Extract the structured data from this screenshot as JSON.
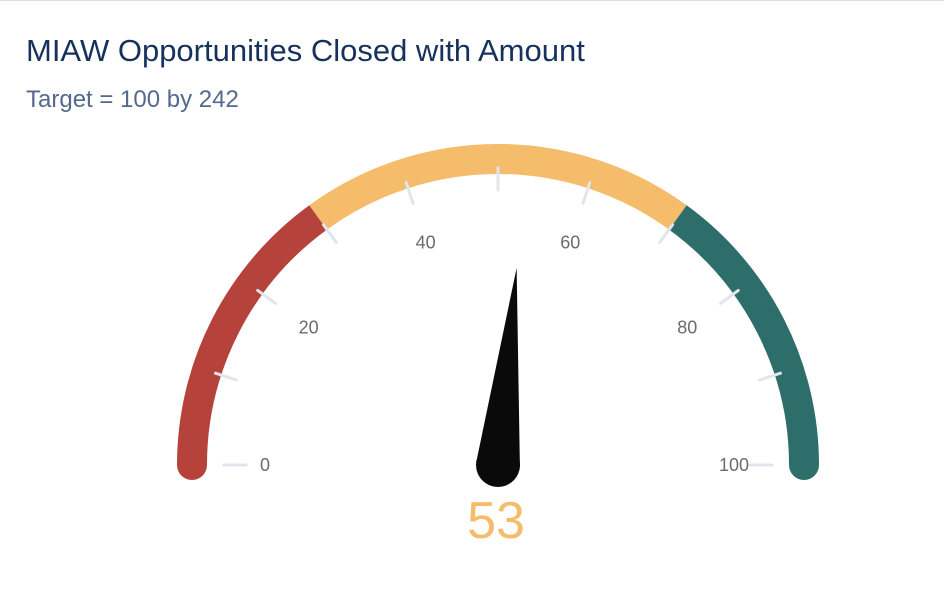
{
  "header": {
    "title": "MIAW Opportunities Closed with Amount",
    "subtitle": "Target = 100 by 242"
  },
  "chart_data": {
    "type": "gauge",
    "title": "MIAW Opportunities Closed with Amount",
    "subtitle": "Target = 100 by 242",
    "min": 0,
    "max": 100,
    "value": 53,
    "value_label": "53",
    "ticks": [
      0,
      20,
      40,
      60,
      80,
      100
    ],
    "tick_labels": [
      "0",
      "20",
      "40",
      "60",
      "80",
      "100"
    ],
    "minor_ticks": [
      10,
      30,
      50,
      70,
      90
    ],
    "bands": [
      {
        "from": 0,
        "to": 30,
        "color": "#b5433b"
      },
      {
        "from": 30,
        "to": 70,
        "color": "#f4bc6b"
      },
      {
        "from": 70,
        "to": 100,
        "color": "#2e6e6a"
      }
    ],
    "value_color": "#f4bc6b",
    "needle_color": "#0a0a0a",
    "tick_color": "#e1e5ec",
    "label_color": "#6b6b6b"
  }
}
